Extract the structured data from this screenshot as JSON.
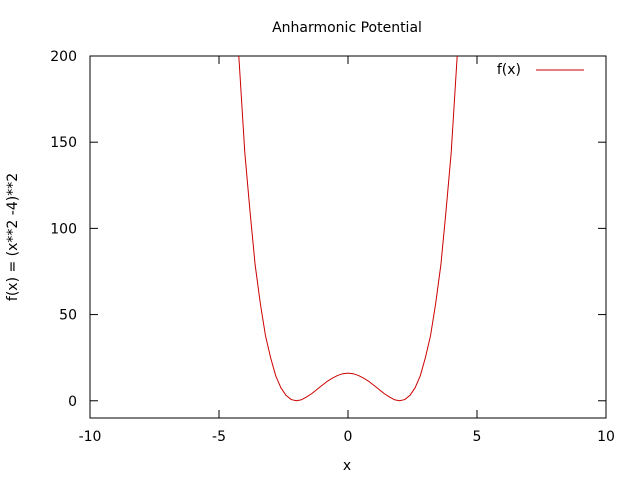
{
  "chart_data": {
    "type": "line",
    "title": "Anharmonic Potential",
    "xlabel": "x",
    "ylabel": "f(x) = (x**2 -4)**2",
    "xlim": [
      -10,
      10
    ],
    "ylim": [
      -10,
      200
    ],
    "xticks": [
      -10,
      -5,
      0,
      5,
      10
    ],
    "yticks": [
      0,
      50,
      100,
      150,
      200
    ],
    "grid": false,
    "legend_position": "top-right",
    "series": [
      {
        "name": "f(x)",
        "color": "#cc0000",
        "x": [
          -4.4,
          -4.2,
          -4.0,
          -3.8,
          -3.6,
          -3.4,
          -3.2,
          -3.0,
          -2.8,
          -2.6,
          -2.4,
          -2.2,
          -2.0,
          -1.8,
          -1.6,
          -1.4,
          -1.2,
          -1.0,
          -0.8,
          -0.6,
          -0.4,
          -0.2,
          0.0,
          0.2,
          0.4,
          0.6,
          0.8,
          1.0,
          1.2,
          1.4,
          1.6,
          1.8,
          2.0,
          2.2,
          2.4,
          2.6,
          2.8,
          3.0,
          3.2,
          3.4,
          3.6,
          3.8,
          4.0,
          4.2,
          4.4
        ],
        "y": [
          239.0,
          192.3,
          144.0,
          110.2,
          78.9,
          56.6,
          37.9,
          25.0,
          14.4,
          7.5,
          3.1,
          0.7,
          0.0,
          0.6,
          2.2,
          4.2,
          6.6,
          9.0,
          11.3,
          13.2,
          14.7,
          15.7,
          16.0,
          15.7,
          14.7,
          13.2,
          11.3,
          9.0,
          6.6,
          4.2,
          2.2,
          0.6,
          0.0,
          0.7,
          3.1,
          7.5,
          14.4,
          25.0,
          37.9,
          56.6,
          78.9,
          110.2,
          144.0,
          192.3,
          239.0
        ]
      }
    ]
  }
}
